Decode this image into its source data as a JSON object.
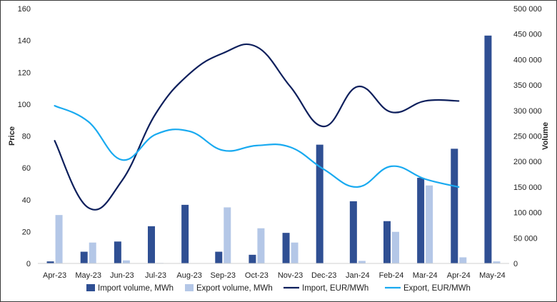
{
  "chart_data": {
    "type": "bar",
    "categories": [
      "Apr-23",
      "May-23",
      "Jun-23",
      "Jul-23",
      "Aug-23",
      "Sep-23",
      "Oct-23",
      "Nov-23",
      "Dec-23",
      "Jan-24",
      "Feb-24",
      "Mar-24",
      "Apr-24",
      "May-24"
    ],
    "y_left": {
      "label": "Price",
      "lim": [
        0,
        160
      ],
      "ticks": [
        0,
        20,
        40,
        60,
        80,
        100,
        120,
        140,
        160
      ]
    },
    "y_right": {
      "label": "Volume",
      "lim": [
        0,
        500000
      ],
      "ticks": [
        0,
        50000,
        100000,
        150000,
        200000,
        250000,
        300000,
        350000,
        400000,
        450000,
        500000
      ],
      "tick_labels": [
        "0",
        "50 000",
        "100 000",
        "150 000",
        "200 000",
        "250 000",
        "300 000",
        "350 000",
        "400 000",
        "450 000",
        "500 000"
      ]
    },
    "grid": false,
    "legend_position": "bottom",
    "series": [
      {
        "name": "Import volume, MWh",
        "type": "bar",
        "axis": "right",
        "color": "#2f4f93",
        "values": [
          4000,
          23000,
          43000,
          73000,
          115000,
          23000,
          17000,
          60000,
          233000,
          122000,
          83000,
          168000,
          225000,
          447000
        ]
      },
      {
        "name": "Export volume, MWh",
        "type": "bar",
        "axis": "right",
        "color": "#b4c7e7",
        "values": [
          95000,
          41000,
          6000,
          1000,
          0,
          110000,
          69000,
          41000,
          0,
          5000,
          62000,
          153000,
          12000,
          4000
        ]
      },
      {
        "name": "Import, EUR/MWh",
        "type": "line",
        "axis": "left",
        "color": "#0d1f5c",
        "values": [
          77,
          35,
          52,
          94,
          119,
          132,
          136,
          111,
          86,
          111,
          95,
          102,
          102,
          null
        ]
      },
      {
        "name": "Export, EUR/MWh",
        "type": "line",
        "axis": "left",
        "color": "#19aaf0",
        "values": [
          99,
          89,
          65,
          81,
          83,
          71,
          74,
          73,
          59,
          48,
          61,
          53,
          48,
          null
        ]
      }
    ]
  }
}
